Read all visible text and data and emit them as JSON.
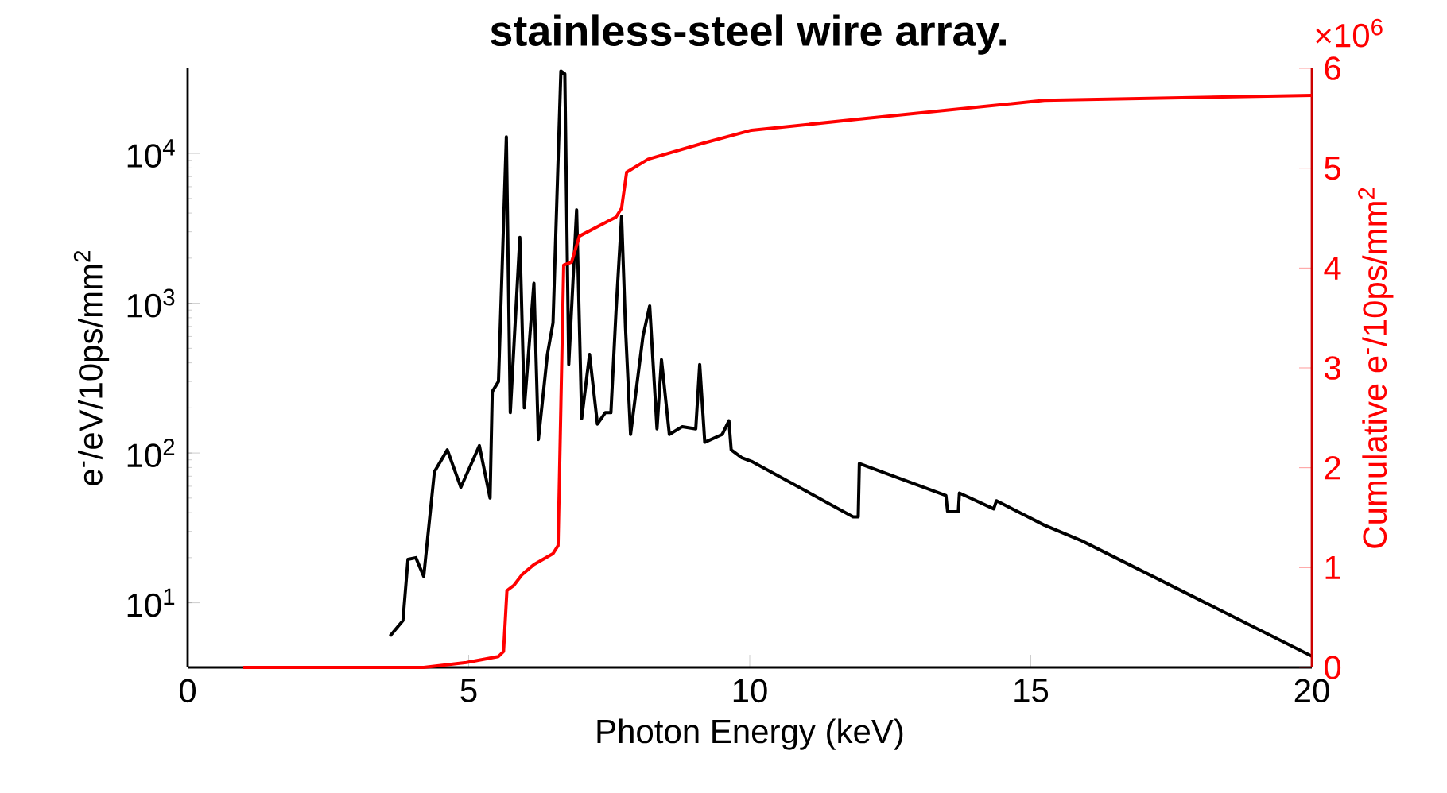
{
  "chart_data": {
    "type": "line",
    "title": "stainless-steel wire array.",
    "xlabel": "Photon Energy (keV)",
    "ylabel": "e$^{-}$/eV/10ps/mm$^{2}$",
    "y2label": "Cumulative e$^{-}$/10ps/mm$^{2}$",
    "annotations": [
      "×10$^{6}$"
    ],
    "log": "y",
    "xlim": [
      0,
      20
    ],
    "xticks": [
      0,
      5,
      10,
      15,
      20
    ],
    "ylim": [
      3.7,
      37000
    ],
    "yticks": [
      {
        "value": 10,
        "label": "10$^{1}$"
      },
      {
        "value": 100,
        "label": "10$^{2}$"
      },
      {
        "value": 1000,
        "label": "10$^{3}$"
      },
      {
        "value": 10000,
        "label": "10$^{4}$"
      }
    ],
    "y2lim": [
      0,
      6
    ],
    "y2ticks": [
      0,
      1,
      2,
      3,
      4,
      5,
      6
    ],
    "line_style": "solid",
    "series": [
      {
        "color": "#000000",
        "x": [
          3.6,
          3.83,
          3.92,
          4.06,
          4.2,
          4.21,
          4.39,
          4.62,
          4.86,
          5.19,
          5.38,
          5.42,
          5.53,
          5.67,
          5.74,
          5.91,
          5.99,
          6.16,
          6.24,
          6.4,
          6.5,
          6.64,
          6.71,
          6.78,
          6.92,
          7.01,
          7.15,
          7.29,
          7.43,
          7.53,
          7.62,
          7.72,
          7.79,
          7.88,
          8.1,
          8.22,
          8.35,
          8.43,
          8.57,
          8.8,
          9.04,
          9.11,
          9.2,
          9.51,
          9.63,
          9.67,
          9.86,
          10.03,
          11.84,
          11.93,
          11.95,
          13.49,
          13.52,
          13.71,
          13.73,
          14.34,
          14.39,
          15.24,
          15.9,
          20
        ],
        "values": [
          6,
          7.6,
          19.5,
          20,
          15,
          null,
          75,
          105,
          59,
          112,
          50,
          257,
          300,
          12900,
          186,
          2750,
          200,
          1360,
          123,
          455,
          740,
          35500,
          34000,
          390,
          4200,
          170,
          455,
          156,
          186,
          186,
          870,
          3800,
          680,
          133,
          600,
          960,
          145,
          420,
          133,
          150,
          145,
          390,
          118,
          133,
          164,
          105,
          93,
          88,
          37.5,
          37.5,
          85,
          52,
          40.6,
          40.6,
          54,
          42.4,
          48,
          33,
          26,
          4.4
        ]
      },
      {
        "color": "#ff0000",
        "axis": "y2",
        "x": [
          0.99,
          4.2,
          4.96,
          5.53,
          5.62,
          5.68,
          5.8,
          5.95,
          6.16,
          6.5,
          6.59,
          6.69,
          6.83,
          6.97,
          7.62,
          7.72,
          7.81,
          8.19,
          9.17,
          10.03,
          11.93,
          15.24,
          20
        ],
        "values": [
          0,
          0,
          0.05,
          0.11,
          0.16,
          0.77,
          0.82,
          0.93,
          1.03,
          1.14,
          1.22,
          4.03,
          4.06,
          4.32,
          4.51,
          4.6,
          4.96,
          5.09,
          5.25,
          5.38,
          5.49,
          5.68,
          5.73
        ]
      }
    ]
  }
}
